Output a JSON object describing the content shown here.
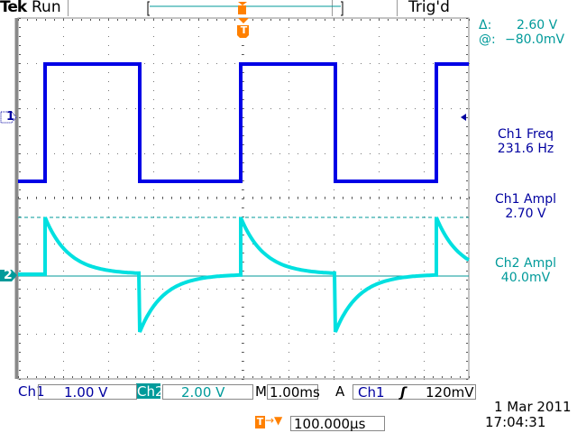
{
  "header": {
    "brand": "Tek",
    "acq_state": "Run",
    "trigger_status": "Trig'd",
    "trigger_marker": "T"
  },
  "cursor_readout": {
    "delta_label": "Δ:",
    "delta_value": "2.60 V",
    "at_label": "@:",
    "at_value": "−80.0mV"
  },
  "measurements": [
    {
      "name": "Ch1 Freq",
      "value": "231.6 Hz",
      "color": "#0000a0"
    },
    {
      "name": "Ch1 Ampl",
      "value": "2.70 V",
      "color": "#0000a0"
    },
    {
      "name": "Ch2 Ampl",
      "value": "40.0mV",
      "color": "#009a9a"
    }
  ],
  "channels": {
    "ch1": {
      "marker": "1",
      "label": "Ch1",
      "scale": "1.00 V",
      "color": "#0000e6"
    },
    "ch2": {
      "marker": "2",
      "label": "Ch2",
      "scale": "2.00 V",
      "color": "#00e0e0"
    }
  },
  "timebase": {
    "label": "M",
    "value": "1.00ms"
  },
  "trigger": {
    "label": "A",
    "source": "Ch1",
    "slope_icon": "rising-edge",
    "slope_glyph": "ʃ",
    "level": "120mV"
  },
  "horizontal_position": {
    "marker": "T",
    "arrow": "→▼",
    "value": "100.000µs"
  },
  "datetime": {
    "date": "1 Mar 2011",
    "time": "17:04:31"
  },
  "colors": {
    "accent": "#ff8000",
    "teal": "#009a9a",
    "grid": "#777777"
  }
}
